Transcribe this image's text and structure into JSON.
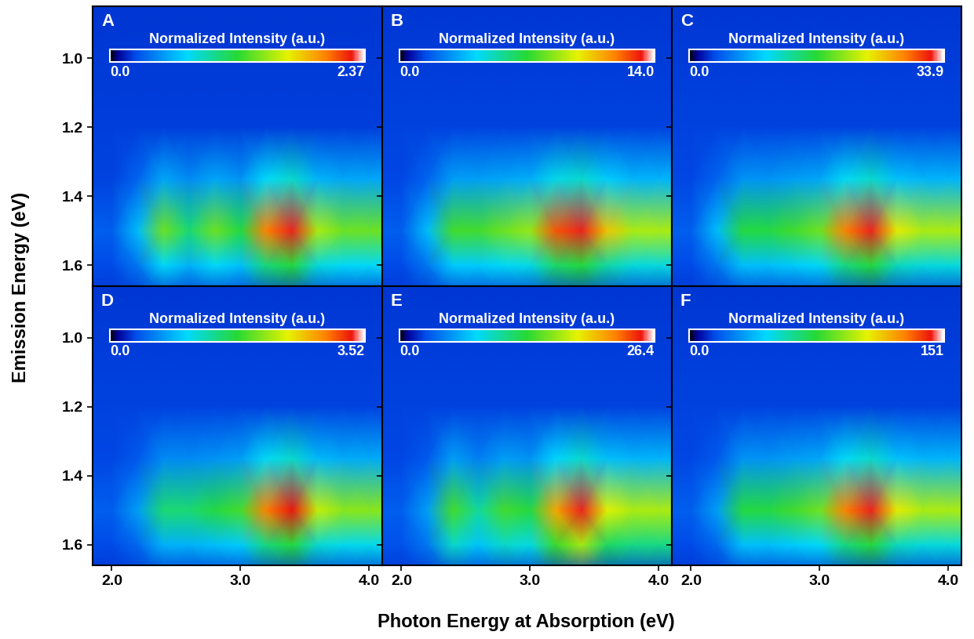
{
  "xlabel": "Photon Energy at Absorption (eV)",
  "ylabel": "Emission Energy (eV)",
  "chart_data": [
    {
      "type": "heatmap",
      "title": "A",
      "tick_labels": "y",
      "x": [
        1.8,
        2.0,
        2.2,
        2.4,
        2.6,
        2.8,
        3.0,
        3.2,
        3.4,
        3.6,
        3.8,
        4.0,
        4.2
      ],
      "y": [
        0.8,
        1.2,
        1.35,
        1.5,
        1.6,
        1.7
      ],
      "cells": [
        [
          0.19,
          0.19,
          0.19,
          0.19,
          0.19,
          0.19,
          0.19,
          0.19,
          0.19,
          0.19,
          0.19,
          0.19,
          0.19
        ],
        [
          0.21,
          0.21,
          0.21,
          0.21,
          0.21,
          0.21,
          0.21,
          0.21,
          0.21,
          0.21,
          0.21,
          0.21,
          0.21
        ],
        [
          0.22,
          0.22,
          0.32,
          0.54,
          0.45,
          0.54,
          0.48,
          0.73,
          0.83,
          0.59,
          0.54,
          0.54,
          0.54
        ],
        [
          0.3,
          0.3,
          0.62,
          1.36,
          1.04,
          1.36,
          1.15,
          2.0,
          2.25,
          1.51,
          1.36,
          1.36,
          1.36
        ],
        [
          0.24,
          0.24,
          0.38,
          0.73,
          0.58,
          0.73,
          0.63,
          1.02,
          1.16,
          0.79,
          0.73,
          0.73,
          0.73
        ],
        [
          0.19,
          0.19,
          0.19,
          0.19,
          0.19,
          0.19,
          0.19,
          0.19,
          0.19,
          0.19,
          0.19,
          0.19,
          0.19
        ]
      ],
      "colorbar": {
        "label": "Normalized Intensity (a.u.)",
        "range": [
          0,
          2.37
        ],
        "ticks": [
          {
            "value": 0,
            "label": "0.0"
          },
          2.37
        ]
      },
      "xlim": [
        1.85,
        4.1
      ],
      "ylim": [
        1.66,
        0.85
      ],
      "xticks": [
        {
          "value": 2,
          "label": "2.0"
        },
        {
          "value": 3,
          "label": "3.0"
        },
        {
          "value": 4,
          "label": "4.0"
        }
      ],
      "yticks": [
        {
          "value": 1,
          "label": "1.0"
        },
        1.2,
        1.4,
        1.6
      ]
    },
    {
      "type": "heatmap",
      "title": "B",
      "tick_labels": false,
      "x": [
        1.8,
        2.0,
        2.2,
        2.4,
        2.6,
        2.8,
        3.0,
        3.2,
        3.4,
        3.6,
        3.8,
        4.0,
        4.2
      ],
      "y": [
        0.8,
        1.2,
        1.35,
        1.5,
        1.6,
        1.7
      ],
      "cells": [
        [
          1.12,
          1.12,
          1.12,
          1.12,
          1.12,
          1.12,
          1.12,
          1.12,
          1.12,
          1.12,
          1.12,
          1.12,
          1.12
        ],
        [
          1.26,
          1.26,
          1.26,
          1.26,
          1.26,
          1.26,
          1.26,
          1.26,
          1.26,
          1.26,
          1.26,
          1.26,
          1.26
        ],
        [
          1.32,
          1.32,
          1.88,
          3.01,
          3.01,
          3.21,
          3.39,
          4.52,
          4.9,
          3.96,
          3.46,
          3.46,
          3.46
        ],
        [
          1.75,
          1.75,
          3.64,
          7.42,
          7.42,
          8.05,
          8.68,
          12.46,
          13.3,
          10.57,
          8.96,
          8.96,
          8.96
        ],
        [
          1.4,
          1.4,
          2.27,
          3.99,
          3.99,
          4.28,
          4.56,
          6.29,
          6.86,
          5.43,
          4.68,
          4.68,
          4.68
        ],
        [
          1.12,
          1.12,
          1.12,
          1.12,
          1.12,
          1.12,
          1.12,
          1.12,
          1.12,
          1.12,
          1.12,
          1.12,
          1.12
        ]
      ],
      "colorbar": {
        "label": "Normalized Intensity (a.u.)",
        "range": [
          0,
          14
        ],
        "ticks": [
          {
            "value": 0,
            "label": "0.0"
          },
          {
            "value": 14,
            "label": "14.0"
          }
        ]
      },
      "xlim": [
        1.85,
        4.1
      ],
      "ylim": [
        1.66,
        0.85
      ],
      "xticks": [
        {
          "value": 2,
          "label": "2.0"
        },
        {
          "value": 3,
          "label": "3.0"
        },
        {
          "value": 4,
          "label": "4.0"
        }
      ],
      "yticks": [
        {
          "value": 1,
          "label": "1.0"
        },
        1.2,
        1.4,
        1.6
      ]
    },
    {
      "type": "heatmap",
      "title": "C",
      "tick_labels": false,
      "x": [
        1.8,
        2.0,
        2.2,
        2.4,
        2.6,
        2.8,
        3.0,
        3.2,
        3.4,
        3.6,
        3.8,
        4.0,
        4.2
      ],
      "y": [
        0.8,
        1.2,
        1.35,
        1.5,
        1.6,
        1.7
      ],
      "cells": [
        [
          2.71,
          2.71,
          2.71,
          2.71,
          2.71,
          2.71,
          2.71,
          2.71,
          2.71,
          2.71,
          2.71,
          2.71,
          2.71
        ],
        [
          3.05,
          3.05,
          3.05,
          3.05,
          3.05,
          3.05,
          3.05,
          3.05,
          3.05,
          3.05,
          3.05,
          3.05,
          3.05
        ],
        [
          3.19,
          3.19,
          4.54,
          6.85,
          6.85,
          7.29,
          7.76,
          10.51,
          11.87,
          9.12,
          8.37,
          8.37,
          8.37
        ],
        [
          4.24,
          4.24,
          8.81,
          16.44,
          16.44,
          17.97,
          19.49,
          28.65,
          32.2,
          24.07,
          21.7,
          21.7,
          21.7
        ],
        [
          3.39,
          3.39,
          5.49,
          8.98,
          8.98,
          9.66,
          10.37,
          14.54,
          16.61,
          12.44,
          11.32,
          11.32,
          11.32
        ],
        [
          2.71,
          2.71,
          2.71,
          2.71,
          2.71,
          2.71,
          2.71,
          2.71,
          2.71,
          2.71,
          2.71,
          2.71,
          2.71
        ]
      ],
      "colorbar": {
        "label": "Normalized Intensity (a.u.)",
        "range": [
          0,
          33.9
        ],
        "ticks": [
          {
            "value": 0,
            "label": "0.0"
          },
          33.9
        ]
      },
      "xlim": [
        1.85,
        4.1
      ],
      "ylim": [
        1.66,
        0.85
      ],
      "xticks": [
        {
          "value": 2,
          "label": "2.0"
        },
        {
          "value": 3,
          "label": "3.0"
        },
        {
          "value": 4,
          "label": "4.0"
        }
      ],
      "yticks": [
        {
          "value": 1,
          "label": "1.0"
        },
        1.2,
        1.4,
        1.6
      ]
    },
    {
      "type": "heatmap",
      "title": "D",
      "tick_labels": true,
      "x": [
        1.8,
        2.0,
        2.2,
        2.4,
        2.6,
        2.8,
        3.0,
        3.2,
        3.4,
        3.6,
        3.8,
        4.0,
        4.2
      ],
      "y": [
        0.8,
        1.2,
        1.35,
        1.5,
        1.6,
        1.7
      ],
      "cells": [
        [
          0.28,
          0.28,
          0.28,
          0.28,
          0.28,
          0.28,
          0.28,
          0.28,
          0.28,
          0.28,
          0.28,
          0.28,
          0.28
        ],
        [
          0.32,
          0.32,
          0.32,
          0.32,
          0.32,
          0.32,
          0.32,
          0.32,
          0.32,
          0.32,
          0.32,
          0.32,
          0.32
        ],
        [
          0.33,
          0.33,
          0.42,
          0.66,
          0.66,
          0.71,
          0.76,
          1.09,
          1.23,
          0.9,
          0.83,
          0.83,
          0.83
        ],
        [
          0.44,
          0.44,
          0.76,
          1.55,
          1.55,
          1.71,
          1.87,
          2.97,
          3.34,
          2.34,
          2.12,
          2.12,
          2.12
        ],
        [
          0.35,
          0.35,
          0.5,
          0.86,
          0.86,
          0.93,
          1.0,
          1.51,
          1.72,
          1.22,
          1.12,
          1.12,
          1.12
        ],
        [
          0.28,
          0.28,
          0.28,
          0.28,
          0.28,
          0.28,
          0.28,
          0.28,
          0.28,
          0.28,
          0.28,
          0.28,
          0.28
        ]
      ],
      "colorbar": {
        "label": "Normalized Intensity (a.u.)",
        "range": [
          0,
          3.52
        ],
        "ticks": [
          {
            "value": 0,
            "label": "0.0"
          },
          3.52
        ]
      },
      "xlim": [
        1.85,
        4.1
      ],
      "ylim": [
        1.66,
        0.85
      ],
      "xticks": [
        {
          "value": 2,
          "label": "2.0"
        },
        {
          "value": 3,
          "label": "3.0"
        },
        {
          "value": 4,
          "label": "4.0"
        }
      ],
      "yticks": [
        {
          "value": 1,
          "label": "1.0"
        },
        1.2,
        1.4,
        1.6
      ]
    },
    {
      "type": "heatmap",
      "title": "E",
      "tick_labels": "x",
      "x": [
        1.8,
        2.0,
        2.2,
        2.4,
        2.6,
        2.8,
        3.0,
        3.2,
        3.4,
        3.6,
        3.8,
        4.0,
        4.2
      ],
      "y": [
        0.8,
        1.2,
        1.35,
        1.5,
        1.6,
        1.7
      ],
      "cells": [
        [
          2.11,
          2.11,
          2.11,
          2.11,
          2.11,
          2.11,
          2.11,
          2.11,
          2.11,
          2.11,
          2.11,
          2.11,
          2.11
        ],
        [
          2.38,
          2.38,
          2.38,
          2.38,
          2.38,
          2.38,
          2.38,
          2.38,
          2.38,
          2.38,
          2.38,
          2.38,
          2.38
        ],
        [
          2.48,
          2.48,
          3.17,
          5.68,
          4.62,
          5.68,
          5.33,
          7.81,
          9.24,
          6.97,
          6.52,
          6.52,
          6.52
        ],
        [
          3.3,
          3.3,
          5.68,
          13.99,
          10.43,
          13.99,
          12.8,
          21.12,
          25.08,
          18.27,
          16.9,
          16.9,
          16.9
        ],
        [
          2.85,
          2.85,
          4.3,
          9.37,
          7.21,
          9.37,
          8.66,
          13.73,
          16.63,
          11.99,
          11.11,
          11.11,
          11.11
        ],
        [
          2.11,
          2.11,
          2.11,
          2.11,
          2.11,
          2.11,
          2.11,
          2.11,
          2.11,
          2.11,
          2.11,
          2.11,
          2.11
        ]
      ],
      "colorbar": {
        "label": "Normalized Intensity (a.u.)",
        "range": [
          0,
          26.4
        ],
        "ticks": [
          {
            "value": 0,
            "label": "0.0"
          },
          26.4
        ]
      },
      "xlim": [
        1.85,
        4.1
      ],
      "ylim": [
        1.66,
        0.85
      ],
      "xticks": [
        {
          "value": 2,
          "label": "2.0"
        },
        {
          "value": 3,
          "label": "3.0"
        },
        {
          "value": 4,
          "label": "4.0"
        }
      ],
      "yticks": [
        {
          "value": 1,
          "label": "1.0"
        },
        1.2,
        1.4,
        1.6
      ]
    },
    {
      "type": "heatmap",
      "title": "F",
      "tick_labels": "x",
      "x": [
        1.8,
        2.0,
        2.2,
        2.4,
        2.6,
        2.8,
        3.0,
        3.2,
        3.4,
        3.6,
        3.8,
        4.0,
        4.2
      ],
      "y": [
        0.8,
        1.2,
        1.35,
        1.5,
        1.6,
        1.7
      ],
      "cells": [
        [
          12.1,
          12.1,
          12.1,
          12.1,
          12.1,
          12.1,
          12.1,
          12.1,
          12.1,
          12.1,
          12.1,
          12.1,
          12.1
        ],
        [
          13.6,
          13.6,
          13.6,
          13.6,
          13.6,
          13.6,
          13.6,
          13.6,
          13.6,
          13.6,
          13.6,
          13.6,
          13.6
        ],
        [
          14.2,
          14.2,
          18.1,
          30.5,
          30.5,
          32.5,
          34.6,
          46.8,
          52.9,
          40.6,
          37.3,
          37.3,
          37.3
        ],
        [
          18.9,
          18.9,
          32.5,
          73.2,
          73.2,
          80.0,
          86.8,
          127.6,
          143.5,
          107.2,
          96.6,
          96.6,
          96.6
        ],
        [
          15.1,
          15.1,
          21.4,
          40.0,
          40.0,
          43.0,
          46.2,
          64.8,
          74.0,
          55.4,
          50.4,
          50.4,
          50.4
        ],
        [
          12.1,
          12.1,
          12.1,
          12.1,
          12.1,
          12.1,
          12.1,
          12.1,
          12.1,
          12.1,
          12.1,
          12.1,
          12.1
        ]
      ],
      "colorbar": {
        "label": "Normalized Intensity (a.u.)",
        "range": [
          0,
          151
        ],
        "ticks": [
          {
            "value": 0,
            "label": "0.0"
          },
          151
        ]
      },
      "xlim": [
        1.85,
        4.1
      ],
      "ylim": [
        1.66,
        0.85
      ],
      "xticks": [
        {
          "value": 2,
          "label": "2.0"
        },
        {
          "value": 3,
          "label": "3.0"
        },
        {
          "value": 4,
          "label": "4.0"
        }
      ],
      "yticks": [
        {
          "value": 1,
          "label": "1.0"
        },
        1.2,
        1.4,
        1.6
      ]
    }
  ]
}
